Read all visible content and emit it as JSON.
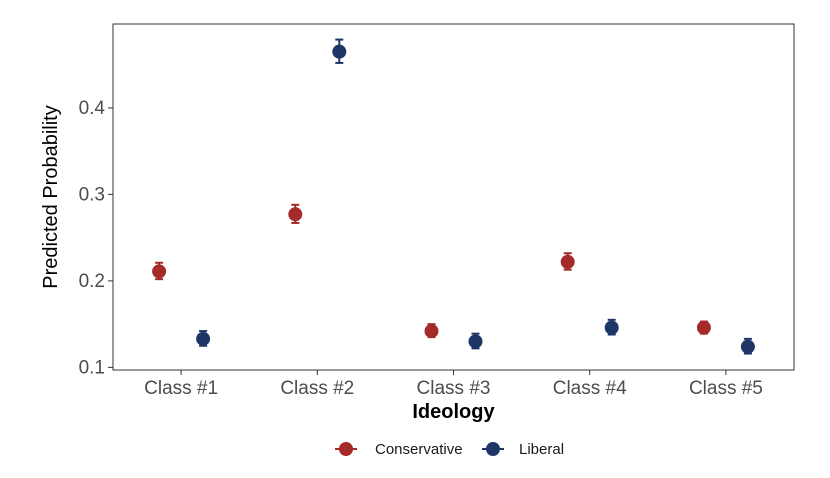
{
  "chart_data": {
    "type": "scatter",
    "title": "",
    "xlabel": "Ideology",
    "ylabel": "Predicted Probability",
    "categories": [
      "Class #1",
      "Class #2",
      "Class #3",
      "Class #4",
      "Class #5"
    ],
    "ylim": [
      0.097,
      0.497
    ],
    "yticks": [
      0.1,
      0.2,
      0.3,
      0.4
    ],
    "ytick_labels": [
      "0.1",
      "0.2",
      "0.3",
      "0.4"
    ],
    "grid": false,
    "legend_position": "bottom",
    "series": [
      {
        "name": "Conservative",
        "color": "#a52a2a",
        "values": [
          0.211,
          0.277,
          0.142,
          0.222,
          0.146
        ],
        "lower": [
          0.202,
          0.267,
          0.135,
          0.213,
          0.139
        ],
        "upper": [
          0.221,
          0.288,
          0.15,
          0.232,
          0.153
        ]
      },
      {
        "name": "Liberal",
        "color": "#1f3566",
        "values": [
          0.133,
          0.465,
          0.13,
          0.146,
          0.124
        ],
        "lower": [
          0.125,
          0.452,
          0.122,
          0.138,
          0.116
        ],
        "upper": [
          0.142,
          0.479,
          0.139,
          0.155,
          0.133
        ]
      }
    ]
  }
}
